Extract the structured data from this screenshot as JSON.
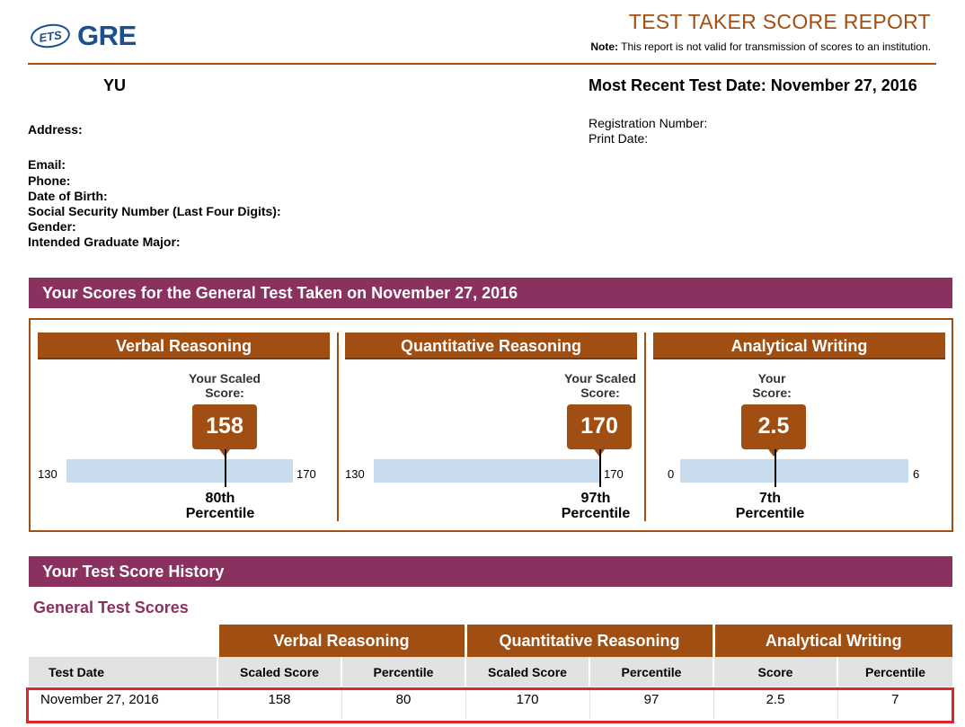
{
  "header": {
    "ets_logo": "ETS",
    "gre_logo": "GRE",
    "title": "TEST TAKER SCORE REPORT",
    "note_label": "Note:",
    "note_text": " This report is not valid for transmission of scores to an institution."
  },
  "candidate": {
    "name": "YU",
    "recent_test_date": "Most Recent Test Date: November 27, 2016",
    "labels": {
      "address": "Address:",
      "email": "Email:",
      "phone": "Phone:",
      "dob": "Date of Birth:",
      "ssn": "Social Security Number (Last Four Digits):",
      "gender": "Gender:",
      "major": "Intended Graduate Major:",
      "registration": "Registration Number:",
      "print_date": "Print Date:"
    }
  },
  "scores_section": {
    "banner": "Your Scores for the General Test Taken on November 27, 2016",
    "panels": [
      {
        "name": "Verbal Reasoning",
        "score_label_line1": "Your Scaled",
        "score_label_line2": "Score:",
        "score": "158",
        "scale_min": "130",
        "scale_max": "170",
        "percentile_line1": "80th",
        "percentile_line2": "Percentile"
      },
      {
        "name": "Quantitative Reasoning",
        "score_label_line1": "Your Scaled",
        "score_label_line2": "Score:",
        "score": "170",
        "scale_min": "130",
        "scale_max": "170",
        "percentile_line1": "97th",
        "percentile_line2": "Percentile"
      },
      {
        "name": "Analytical Writing",
        "score_label_line1": "Your",
        "score_label_line2": "Score:",
        "score": "2.5",
        "scale_min": "0",
        "scale_max": "6",
        "percentile_line1": "7th",
        "percentile_line2": "Percentile"
      }
    ]
  },
  "history_section": {
    "banner": "Your Test Score History",
    "subheading": "General Test Scores",
    "groups": [
      "Verbal Reasoning",
      "Quantitative Reasoning",
      "Analytical Writing"
    ],
    "columns": [
      "Test Date",
      "Scaled Score",
      "Percentile",
      "Scaled Score",
      "Percentile",
      "Score",
      "Percentile"
    ],
    "rows": [
      [
        "November 27, 2016",
        "158",
        "80",
        "170",
        "97",
        "2.5",
        "7"
      ]
    ]
  },
  "colors": {
    "brown": "#a14e12",
    "purple": "#8b3160",
    "bar": "#c8dcee",
    "highlight": "#e0252b"
  }
}
